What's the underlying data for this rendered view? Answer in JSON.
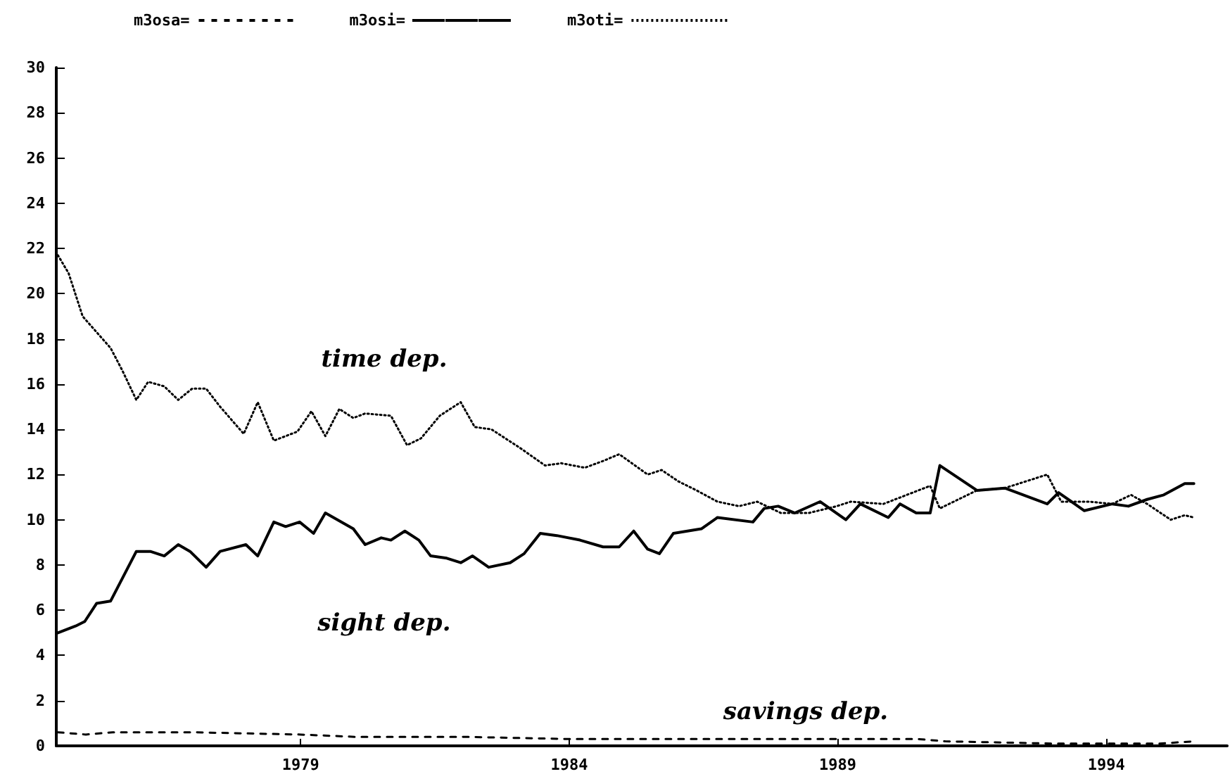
{
  "chart_data": {
    "type": "line",
    "xlim": [
      1974.45,
      1996.25
    ],
    "xticks": [
      1979,
      1984,
      1989,
      1994
    ],
    "ylim": [
      0,
      30
    ],
    "yticks": [
      0,
      2,
      4,
      6,
      8,
      10,
      12,
      14,
      16,
      18,
      20,
      22,
      24,
      26,
      28,
      30
    ],
    "grid": false,
    "legend": "top left",
    "marker": "none",
    "annotations": [
      "time dep.",
      "sight dep.",
      "savings dep."
    ],
    "series": [
      {
        "name": "m3osa=",
        "color": "#000000",
        "line_style": "dashed",
        "x": [
          1974.48,
          1975.0,
          1975.5,
          1977.0,
          1979.0,
          1980.0,
          1982.0,
          1984.0,
          1987.0,
          1989.0,
          1990.5,
          1991.0,
          1993.0,
          1995.0,
          1995.63
        ],
        "values": [
          0.6,
          0.5,
          0.6,
          0.6,
          0.5,
          0.4,
          0.4,
          0.3,
          0.3,
          0.3,
          0.3,
          0.2,
          0.1,
          0.1,
          0.2
        ]
      },
      {
        "name": "m3osi=",
        "color": "#000000",
        "line_style": "solid",
        "x": [
          1974.48,
          1974.81,
          1974.98,
          1975.2,
          1975.46,
          1975.94,
          1976.2,
          1976.46,
          1976.72,
          1976.94,
          1977.24,
          1977.5,
          1977.98,
          1978.2,
          1978.5,
          1978.72,
          1978.98,
          1979.24,
          1979.46,
          1979.98,
          1980.2,
          1980.5,
          1980.68,
          1980.94,
          1981.2,
          1981.42,
          1981.72,
          1981.98,
          1982.2,
          1982.5,
          1982.9,
          1983.16,
          1983.46,
          1983.77,
          1984.2,
          1984.63,
          1984.93,
          1985.2,
          1985.46,
          1985.68,
          1985.94,
          1986.46,
          1986.76,
          1987.42,
          1987.63,
          1987.89,
          1988.2,
          1988.67,
          1989.15,
          1989.42,
          1989.94,
          1990.16,
          1990.46,
          1990.72,
          1990.9,
          1991.59,
          1992.11,
          1992.9,
          1993.11,
          1993.59,
          1994.11,
          1994.41,
          1994.76,
          1995.07,
          1995.46,
          1995.63
        ],
        "values": [
          5.0,
          5.3,
          5.5,
          6.3,
          6.4,
          8.6,
          8.6,
          8.4,
          8.9,
          8.6,
          7.9,
          8.6,
          8.9,
          8.4,
          9.9,
          9.7,
          9.9,
          9.4,
          10.3,
          9.6,
          8.9,
          9.2,
          9.1,
          9.5,
          9.1,
          8.4,
          8.3,
          8.1,
          8.4,
          7.9,
          8.1,
          8.5,
          9.4,
          9.3,
          9.1,
          8.8,
          8.8,
          9.5,
          8.7,
          8.5,
          9.4,
          9.6,
          10.1,
          9.9,
          10.5,
          10.6,
          10.3,
          10.8,
          10.0,
          10.7,
          10.1,
          10.7,
          10.3,
          10.3,
          12.4,
          11.3,
          11.4,
          10.7,
          11.2,
          10.4,
          10.7,
          10.6,
          10.9,
          11.1,
          11.6,
          11.6
        ]
      },
      {
        "name": "m3oti=",
        "color": "#000000",
        "line_style": "dotted",
        "x": [
          1974.48,
          1974.68,
          1974.94,
          1975.46,
          1975.68,
          1975.94,
          1976.16,
          1976.46,
          1976.72,
          1976.98,
          1977.24,
          1977.5,
          1977.94,
          1978.2,
          1978.5,
          1978.94,
          1979.2,
          1979.46,
          1979.72,
          1979.98,
          1980.2,
          1980.68,
          1980.98,
          1981.24,
          1981.59,
          1981.98,
          1982.24,
          1982.55,
          1983.07,
          1983.55,
          1983.85,
          1984.29,
          1984.63,
          1984.93,
          1985.46,
          1985.72,
          1986.03,
          1986.37,
          1986.76,
          1987.16,
          1987.5,
          1987.94,
          1988.46,
          1988.98,
          1989.24,
          1989.85,
          1990.72,
          1990.9,
          1991.59,
          1992.11,
          1992.9,
          1993.16,
          1993.68,
          1994.11,
          1994.46,
          1994.76,
          1995.2,
          1995.46,
          1995.63
        ],
        "values": [
          21.7,
          20.9,
          19.0,
          17.6,
          16.6,
          15.3,
          16.1,
          15.9,
          15.3,
          15.8,
          15.8,
          15.0,
          13.8,
          15.2,
          13.5,
          13.9,
          14.8,
          13.7,
          14.9,
          14.5,
          14.7,
          14.6,
          13.3,
          13.6,
          14.6,
          15.2,
          14.1,
          14.0,
          13.2,
          12.4,
          12.5,
          12.3,
          12.6,
          12.9,
          12.0,
          12.2,
          11.7,
          11.3,
          10.8,
          10.6,
          10.8,
          10.3,
          10.3,
          10.6,
          10.8,
          10.7,
          11.5,
          10.5,
          11.3,
          11.4,
          12.0,
          10.8,
          10.8,
          10.7,
          11.1,
          10.7,
          10.0,
          10.2,
          10.1
        ]
      }
    ]
  }
}
